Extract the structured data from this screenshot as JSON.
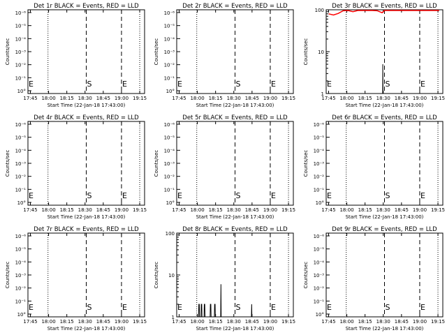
{
  "chart_data": [
    {
      "type": "line",
      "title": "Det 1r BLACK = Events, RED = LLD",
      "xlabel": "Start Time (22-Jan-18 17:43:00)",
      "ylabel": "Counts/sec",
      "scale": "log-small",
      "x_ticks": [
        "17:45",
        "18:00",
        "18:15",
        "18:30",
        "18:45",
        "19:00",
        "19:15"
      ],
      "y_ticks": [
        "10°",
        "10⁻¹",
        "10⁻²",
        "10⁻³",
        "10⁻⁴",
        "10⁻⁵",
        "10⁻⁶"
      ],
      "markers": {
        "S": "18:30",
        "E": "19:00"
      },
      "events": [],
      "lld": []
    },
    {
      "type": "line",
      "title": "Det 2r BLACK = Events, RED = LLD",
      "xlabel": "Start Time (22-Jan-18 17:43:00)",
      "ylabel": "Counts/sec",
      "scale": "log-small",
      "x_ticks": [
        "17:45",
        "18:00",
        "18:15",
        "18:30",
        "18:45",
        "19:00",
        "19:15"
      ],
      "y_ticks": [
        "10°",
        "10⁻¹",
        "10⁻²",
        "10⁻³",
        "10⁻⁴",
        "10⁻⁵",
        "10⁻⁶"
      ],
      "markers": {
        "S": "18:30",
        "E": "19:00"
      },
      "events": [],
      "lld": []
    },
    {
      "type": "line",
      "title": "Det 3r BLACK = Events, RED = LLD",
      "xlabel": "Start Time (22-Jan-18 17:43:00)",
      "ylabel": "Counts/sec",
      "scale": "log-large",
      "x_ticks": [
        "17:45",
        "18:00",
        "18:15",
        "18:30",
        "18:45",
        "19:00",
        "19:15"
      ],
      "y_ticks": [
        "100",
        "10",
        "1"
      ],
      "markers": {
        "S": "18:30",
        "E": "19:00"
      },
      "events": [
        {
          "t": 46.5,
          "v": 1
        },
        {
          "t": 46.6,
          "v": 5
        },
        {
          "t": 46.8,
          "v": 1
        }
      ],
      "lld": [
        {
          "t": 2,
          "v": 80
        },
        {
          "t": 6,
          "v": 75
        },
        {
          "t": 10,
          "v": 82
        },
        {
          "t": 14,
          "v": 95
        },
        {
          "t": 18,
          "v": 100
        },
        {
          "t": 22,
          "v": 90
        },
        {
          "t": 26,
          "v": 100
        },
        {
          "t": 30,
          "v": 100
        },
        {
          "t": 34,
          "v": 100
        },
        {
          "t": 38,
          "v": 100
        },
        {
          "t": 42,
          "v": 95
        },
        {
          "t": 46,
          "v": 85
        },
        {
          "t": 48,
          "v": 100
        },
        {
          "t": 60,
          "v": 100
        },
        {
          "t": 70,
          "v": 100
        },
        {
          "t": 80,
          "v": 100
        },
        {
          "t": 93,
          "v": 100
        }
      ]
    },
    {
      "type": "line",
      "title": "Det 4r BLACK = Events, RED = LLD",
      "xlabel": "Start Time (22-Jan-18 17:43:00)",
      "ylabel": "Counts/sec",
      "scale": "log-small",
      "x_ticks": [
        "17:45",
        "18:00",
        "18:15",
        "18:30",
        "18:45",
        "19:00",
        "19:15"
      ],
      "y_ticks": [
        "10°",
        "10⁻¹",
        "10⁻²",
        "10⁻³",
        "10⁻⁴",
        "10⁻⁵",
        "10⁻⁶"
      ],
      "markers": {
        "S": "18:30",
        "E": "19:00"
      },
      "events": [],
      "lld": []
    },
    {
      "type": "line",
      "title": "Det 5r BLACK = Events, RED = LLD",
      "xlabel": "Start Time (22-Jan-18 17:43:00)",
      "ylabel": "Counts/sec",
      "scale": "log-small",
      "x_ticks": [
        "17:45",
        "18:00",
        "18:15",
        "18:30",
        "18:45",
        "19:00",
        "19:15"
      ],
      "y_ticks": [
        "10°",
        "10⁻¹",
        "10⁻²",
        "10⁻³",
        "10⁻⁴",
        "10⁻⁵",
        "10⁻⁶"
      ],
      "markers": {
        "S": "18:30",
        "E": "19:00"
      },
      "events": [],
      "lld": []
    },
    {
      "type": "line",
      "title": "Det 6r BLACK = Events, RED = LLD",
      "xlabel": "Start Time (22-Jan-18 17:43:00)",
      "ylabel": "Counts/sec",
      "scale": "log-small",
      "x_ticks": [
        "17:45",
        "18:00",
        "18:15",
        "18:30",
        "18:45",
        "19:00",
        "19:15"
      ],
      "y_ticks": [
        "10°",
        "10⁻¹",
        "10⁻²",
        "10⁻³",
        "10⁻⁴",
        "10⁻⁵",
        "10⁻⁶"
      ],
      "markers": {
        "S": "18:30",
        "E": "19:00"
      },
      "events": [],
      "lld": []
    },
    {
      "type": "line",
      "title": "Det 7r BLACK = Events, RED = LLD",
      "xlabel": "Start Time (22-Jan-18 17:43:00)",
      "ylabel": "Counts/sec",
      "scale": "log-small",
      "x_ticks": [
        "17:45",
        "18:00",
        "18:15",
        "18:30",
        "18:45",
        "19:00",
        "19:15"
      ],
      "y_ticks": [
        "10°",
        "10⁻¹",
        "10⁻²",
        "10⁻³",
        "10⁻⁴",
        "10⁻⁵",
        "10⁻⁶"
      ],
      "markers": {
        "S": "18:30",
        "E": "19:00"
      },
      "events": [],
      "lld": []
    },
    {
      "type": "line",
      "title": "Det 8r BLACK = Events, RED = LLD",
      "xlabel": "Start Time (22-Jan-18 17:43:00)",
      "ylabel": "Counts/sec",
      "scale": "log-large",
      "x_ticks": [
        "17:45",
        "18:00",
        "18:15",
        "18:30",
        "18:45",
        "19:00",
        "19:15"
      ],
      "y_ticks": [
        "100",
        "10",
        "1"
      ],
      "markers": {
        "S": "18:30",
        "E": "19:00"
      },
      "events": [
        {
          "t": 18.0,
          "v": 1
        },
        {
          "t": 18.2,
          "v": 2
        },
        {
          "t": 18.6,
          "v": 2
        },
        {
          "t": 18.8,
          "v": 1
        },
        {
          "t": 20.0,
          "v": 1
        },
        {
          "t": 20.2,
          "v": 2
        },
        {
          "t": 20.6,
          "v": 2
        },
        {
          "t": 20.8,
          "v": 1
        },
        {
          "t": 22.5,
          "v": 1
        },
        {
          "t": 22.7,
          "v": 2
        },
        {
          "t": 23.1,
          "v": 2
        },
        {
          "t": 23.3,
          "v": 1
        },
        {
          "t": 27.5,
          "v": 1
        },
        {
          "t": 27.7,
          "v": 2
        },
        {
          "t": 28.1,
          "v": 2
        },
        {
          "t": 28.3,
          "v": 1
        },
        {
          "t": 31.0,
          "v": 1
        },
        {
          "t": 31.2,
          "v": 2
        },
        {
          "t": 31.6,
          "v": 2
        },
        {
          "t": 31.8,
          "v": 1
        },
        {
          "t": 36.2,
          "v": 1
        },
        {
          "t": 36.4,
          "v": 6
        },
        {
          "t": 36.6,
          "v": 1
        },
        {
          "t": 61.5,
          "v": 1
        },
        {
          "t": 61.7,
          "v": 2
        },
        {
          "t": 61.9,
          "v": 1
        }
      ],
      "lld": []
    },
    {
      "type": "line",
      "title": "Det 9r BLACK = Events, RED = LLD",
      "xlabel": "Start Time (22-Jan-18 17:43:00)",
      "ylabel": "Counts/sec",
      "scale": "log-small",
      "x_ticks": [
        "17:45",
        "18:00",
        "18:15",
        "18:30",
        "18:45",
        "19:00",
        "19:15"
      ],
      "y_ticks": [
        "10°",
        "10⁻¹",
        "10⁻²",
        "10⁻³",
        "10⁻⁴",
        "10⁻⁵",
        "10⁻⁶"
      ],
      "markers": {
        "S": "18:30",
        "E": "19:00"
      },
      "events": [],
      "lld": []
    }
  ],
  "colors": {
    "events": "#000000",
    "lld": "#ff0000",
    "axes": "#000000",
    "background": "#ffffff"
  }
}
